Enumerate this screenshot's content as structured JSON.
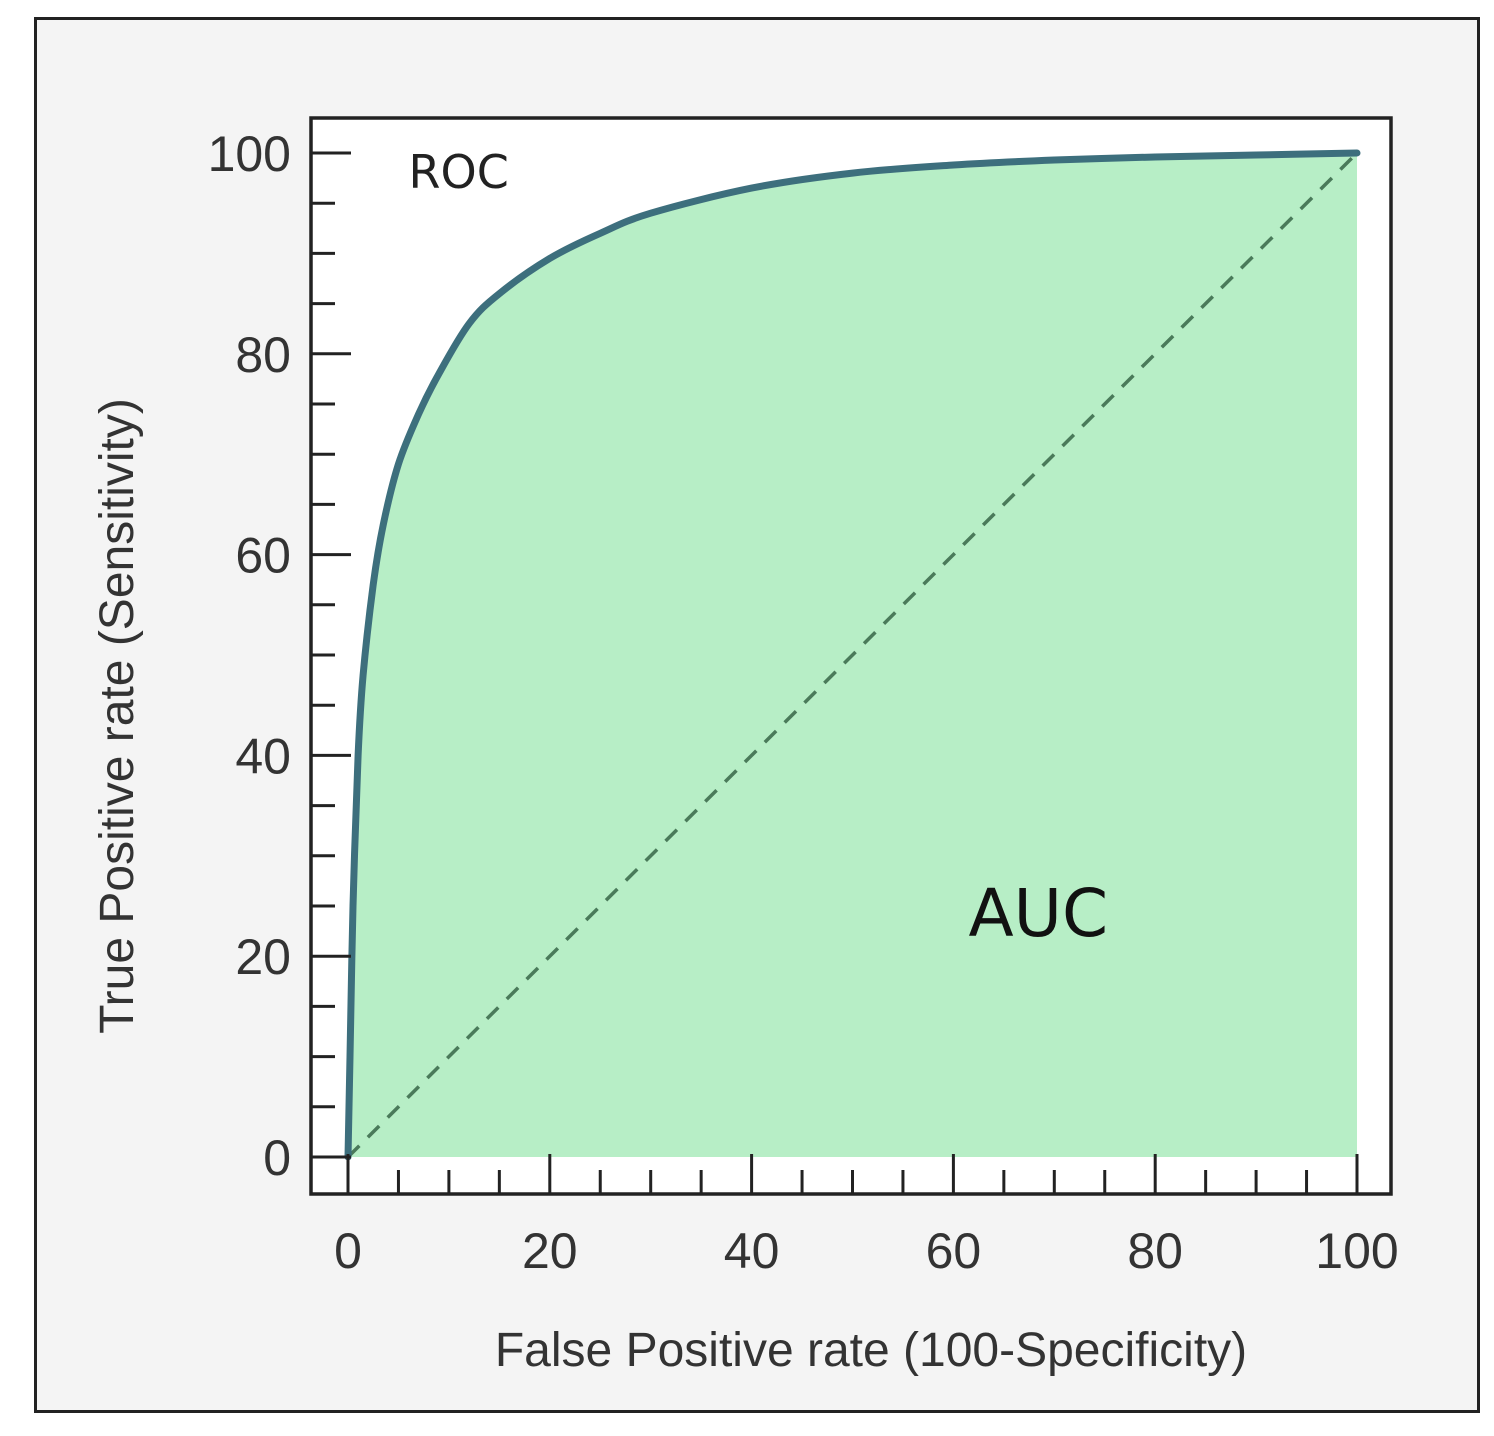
{
  "chart_data": {
    "type": "area",
    "title": "",
    "xlabel": "False Positive rate (100-Specificity)",
    "ylabel": "True Positive rate (Sensitivity)",
    "xlim": [
      0,
      100
    ],
    "ylim": [
      0,
      100
    ],
    "x_ticks": [
      "0",
      "20",
      "40",
      "60",
      "80",
      "100"
    ],
    "y_ticks": [
      "0",
      "20",
      "40",
      "60",
      "80",
      "100"
    ],
    "grid": false,
    "legend": "none",
    "series": [
      {
        "kind": "roc-curve",
        "x": [
          0,
          0.2,
          0.5,
          1,
          1.5,
          2.5,
          3.5,
          5,
          7,
          9,
          12,
          15,
          20,
          25,
          30,
          40,
          50,
          60,
          70,
          80,
          90,
          100
        ],
        "y": [
          0,
          10,
          25,
          40,
          48,
          57,
          63,
          69,
          74,
          78,
          83,
          86,
          89.5,
          92,
          94,
          96.5,
          98,
          98.8,
          99.3,
          99.6,
          99.8,
          100
        ],
        "color": "#3d6f7d"
      },
      {
        "kind": "chance-diagonal",
        "x": [
          0,
          100
        ],
        "y": [
          0,
          100
        ],
        "color": "#4a7a5a",
        "style": "dashed"
      }
    ],
    "fill_color": "#b7eec6",
    "annotations": [
      {
        "text": "ROC",
        "x": 6,
        "y": 96.5
      },
      {
        "text": "AUC",
        "x": 61.5,
        "y": 22
      }
    ]
  }
}
